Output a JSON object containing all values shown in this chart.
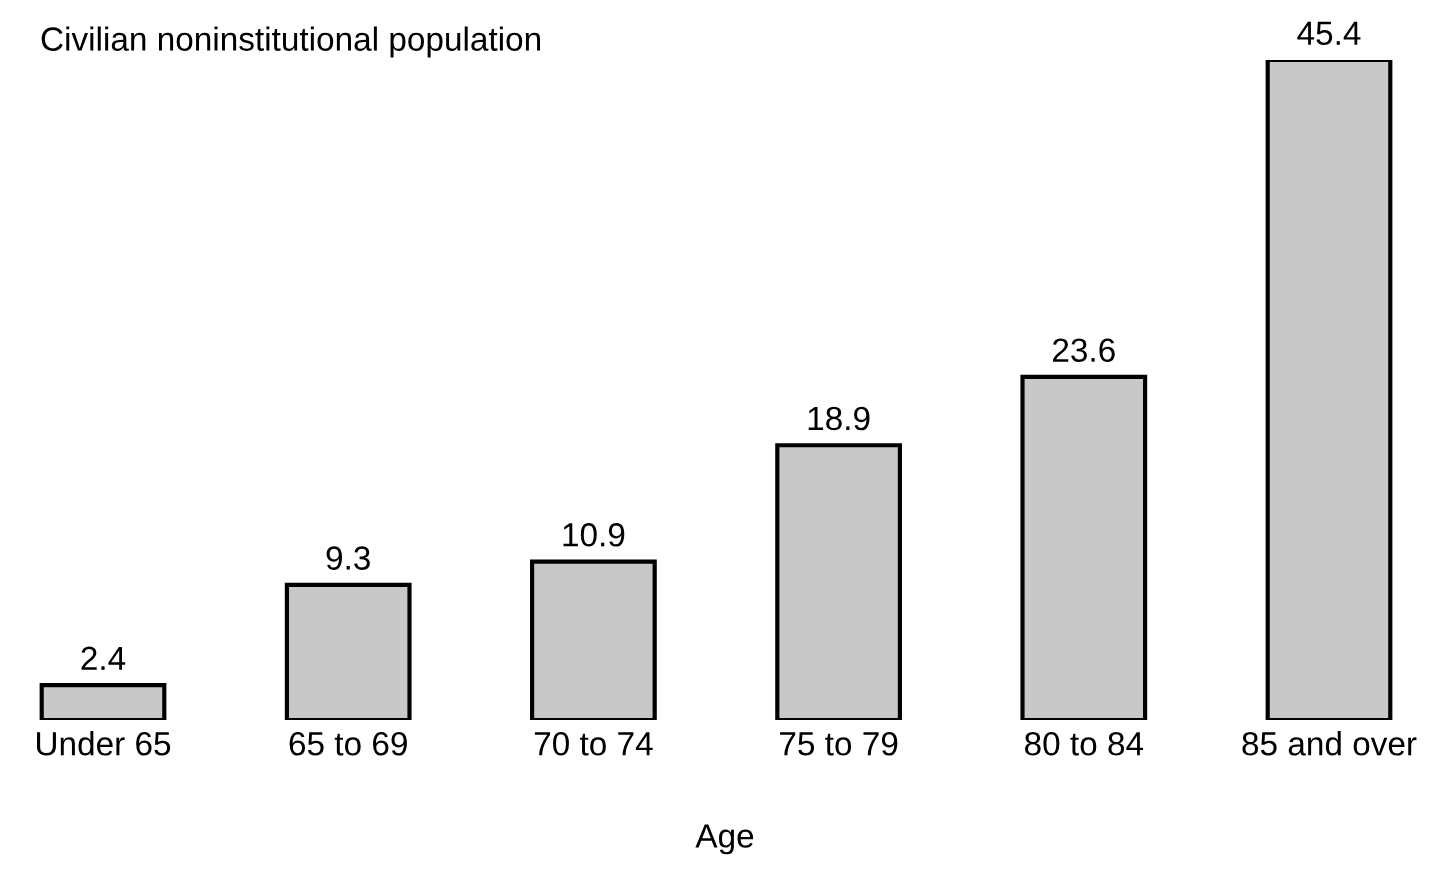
{
  "chart_data": {
    "type": "bar",
    "title": "Civilian noninstitutional population",
    "xlabel": "Age",
    "categories": [
      "Under 65",
      "65 to 69",
      "70 to 74",
      "75 to 79",
      "80 to 84",
      "85 and over"
    ],
    "values": [
      2.4,
      9.3,
      10.9,
      18.9,
      23.6,
      45.4
    ],
    "color": "#c8c8c8",
    "data_labels": true,
    "grid": false,
    "legend": false
  }
}
